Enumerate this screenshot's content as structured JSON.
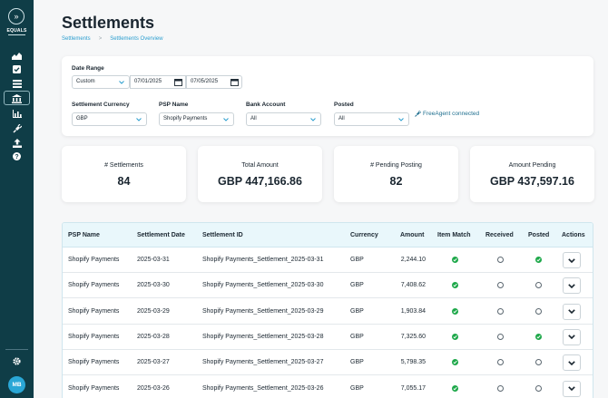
{
  "sidebar": {
    "logo_text": "EQUALS",
    "avatar_initials": "MB",
    "icons": [
      "area-chart-icon",
      "check-square-icon",
      "list-icon",
      "bank-icon",
      "bar-chart-icon",
      "plug-icon",
      "upload-icon",
      "help-icon",
      "gear-icon"
    ],
    "active_item": "bank-icon"
  },
  "header": {
    "title": "Settlements",
    "breadcrumb": [
      "Settlements",
      "Settlements Overview"
    ]
  },
  "filters": {
    "date_range": {
      "label": "Date Range",
      "preset": "Custom",
      "start": "07/01/2025",
      "end": "07/05/2025"
    },
    "settlement_currency": {
      "label": "Settlement Currency",
      "value": "GBP"
    },
    "psp_name": {
      "label": "PSP Name",
      "value": "Shopify Payments"
    },
    "bank_account": {
      "label": "Bank Account",
      "value": "All"
    },
    "posted": {
      "label": "Posted",
      "value": "All"
    },
    "integration_status": "FreeAgent connected"
  },
  "kpis": [
    {
      "label": "# Settlements",
      "value": "84"
    },
    {
      "label": "Total Amount",
      "value": "GBP 447,166.86"
    },
    {
      "label": "# Pending Posting",
      "value": "82"
    },
    {
      "label": "Amount Pending",
      "value": "GBP 437,597.16"
    }
  ],
  "table": {
    "columns": [
      "PSP Name",
      "Settlement Date",
      "Settlement ID",
      "Currency",
      "Amount",
      "Item Match",
      "Received",
      "Posted",
      "Actions"
    ],
    "rows": [
      {
        "psp": "Shopify Payments",
        "date": "2025-03-31",
        "id": "Shopify Payments_Settlement_2025-03-31",
        "currency": "GBP",
        "amount": "2,244.10",
        "item_match": true,
        "received": false,
        "posted": true
      },
      {
        "psp": "Shopify Payments",
        "date": "2025-03-30",
        "id": "Shopify Payments_Settlement_2025-03-30",
        "currency": "GBP",
        "amount": "7,408.62",
        "item_match": true,
        "received": false,
        "posted": false
      },
      {
        "psp": "Shopify Payments",
        "date": "2025-03-29",
        "id": "Shopify Payments_Settlement_2025-03-29",
        "currency": "GBP",
        "amount": "1,903.84",
        "item_match": true,
        "received": false,
        "posted": false
      },
      {
        "psp": "Shopify Payments",
        "date": "2025-03-28",
        "id": "Shopify Payments_Settlement_2025-03-28",
        "currency": "GBP",
        "amount": "7,325.60",
        "item_match": true,
        "received": false,
        "posted": true
      },
      {
        "psp": "Shopify Payments",
        "date": "2025-03-27",
        "id": "Shopify Payments_Settlement_2025-03-27",
        "currency": "GBP",
        "amount": "5,798.35",
        "item_match": true,
        "received": false,
        "posted": false
      },
      {
        "psp": "Shopify Payments",
        "date": "2025-03-26",
        "id": "Shopify Payments_Settlement_2025-03-26",
        "currency": "GBP",
        "amount": "7,055.17",
        "item_match": true,
        "received": false,
        "posted": false
      }
    ]
  },
  "colors": {
    "sidebar": "#0f3d47",
    "accent": "#2b9ecf",
    "success": "#1ea84a",
    "table_header": "#e9f7fb"
  }
}
